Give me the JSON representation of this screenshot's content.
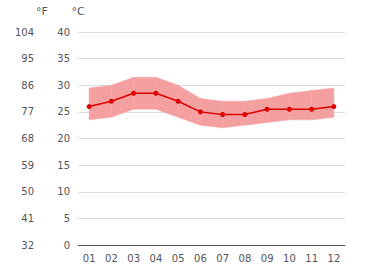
{
  "chart_data": {
    "type": "line",
    "categories": [
      "01",
      "02",
      "03",
      "04",
      "05",
      "06",
      "07",
      "08",
      "09",
      "10",
      "11",
      "12"
    ],
    "series": [
      {
        "type": "band",
        "color": "#f5a0a0",
        "low": [
          23.5,
          24.0,
          25.5,
          25.5,
          24.0,
          22.5,
          22.0,
          22.5,
          23.0,
          23.5,
          23.5,
          24.0
        ],
        "high": [
          29.5,
          30.0,
          31.5,
          31.5,
          30.0,
          27.5,
          27.0,
          27.0,
          27.5,
          28.5,
          29.0,
          29.5
        ]
      },
      {
        "type": "line",
        "color": "#dd0000",
        "marker": "circle",
        "values": [
          26.0,
          27.0,
          28.5,
          28.5,
          27.0,
          25.0,
          24.5,
          24.5,
          25.5,
          25.5,
          25.5,
          26.0
        ]
      }
    ],
    "ylabel": "°C",
    "ylim": [
      0,
      40
    ],
    "yticks": [
      0,
      5,
      10,
      15,
      20,
      25,
      30,
      35,
      40
    ],
    "y2label": "°F",
    "y2lim": [
      32,
      104
    ],
    "y2ticks": [
      32,
      41,
      50,
      59,
      68,
      77,
      86,
      95,
      104
    ],
    "grid": true
  }
}
